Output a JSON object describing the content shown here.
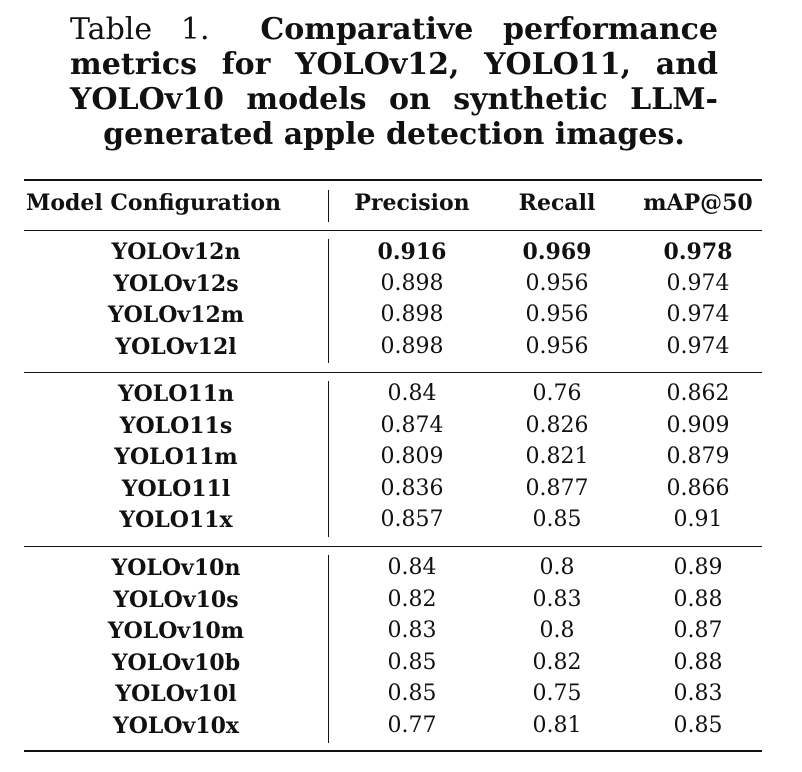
{
  "caption": {
    "label": "Table 1.",
    "text": "Comparative performance metrics for YOLOv12, YOLO11, and YOLOv10 models on synthetic LLM-generated apple detection images."
  },
  "table": {
    "headers": {
      "model": "Model Configuration",
      "precision": "Precision",
      "recall": "Recall",
      "map50": "mAP@50"
    },
    "groups": [
      {
        "rows": [
          {
            "model": "YOLOv12n",
            "precision": "0.916",
            "recall": "0.969",
            "map50": "0.978",
            "bold": true
          },
          {
            "model": "YOLOv12s",
            "precision": "0.898",
            "recall": "0.956",
            "map50": "0.974"
          },
          {
            "model": "YOLOv12m",
            "precision": "0.898",
            "recall": "0.956",
            "map50": "0.974"
          },
          {
            "model": "YOLOv12l",
            "precision": "0.898",
            "recall": "0.956",
            "map50": "0.974"
          }
        ]
      },
      {
        "rows": [
          {
            "model": "YOLO11n",
            "precision": "0.84",
            "recall": "0.76",
            "map50": "0.862"
          },
          {
            "model": "YOLO11s",
            "precision": "0.874",
            "recall": "0.826",
            "map50": "0.909"
          },
          {
            "model": "YOLO11m",
            "precision": "0.809",
            "recall": "0.821",
            "map50": "0.879"
          },
          {
            "model": "YOLO11l",
            "precision": "0.836",
            "recall": "0.877",
            "map50": "0.866"
          },
          {
            "model": "YOLO11x",
            "precision": "0.857",
            "recall": "0.85",
            "map50": "0.91"
          }
        ]
      },
      {
        "rows": [
          {
            "model": "YOLOv10n",
            "precision": "0.84",
            "recall": "0.8",
            "map50": "0.89"
          },
          {
            "model": "YOLOv10s",
            "precision": "0.82",
            "recall": "0.83",
            "map50": "0.88"
          },
          {
            "model": "YOLOv10m",
            "precision": "0.83",
            "recall": "0.8",
            "map50": "0.87"
          },
          {
            "model": "YOLOv10b",
            "precision": "0.85",
            "recall": "0.82",
            "map50": "0.88"
          },
          {
            "model": "YOLOv10l",
            "precision": "0.85",
            "recall": "0.75",
            "map50": "0.83"
          },
          {
            "model": "YOLOv10x",
            "precision": "0.77",
            "recall": "0.81",
            "map50": "0.85"
          }
        ]
      }
    ]
  }
}
